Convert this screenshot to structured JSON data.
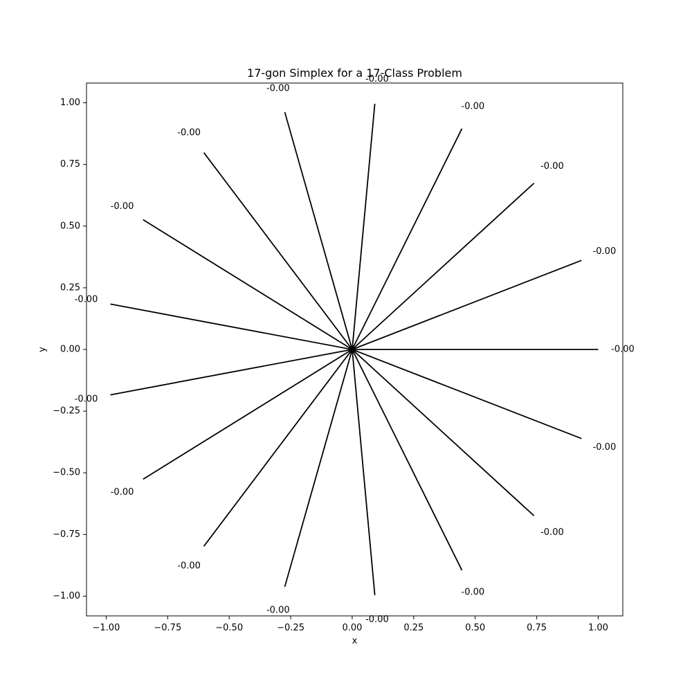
{
  "chart_data": {
    "type": "line",
    "title": "17-gon Simplex for a 17-Class Problem",
    "xlabel": "x",
    "ylabel": "y",
    "xlim": [
      -1.08,
      1.1
    ],
    "ylim": [
      -1.08,
      1.08
    ],
    "grid": false,
    "legend": "none",
    "line_color": "#000000",
    "x_ticks": [
      -1.0,
      -0.75,
      -0.5,
      -0.25,
      0.0,
      0.25,
      0.5,
      0.75,
      1.0
    ],
    "x_tick_labels": [
      "−1.00",
      "−0.75",
      "−0.50",
      "−0.25",
      "0.00",
      "0.25",
      "0.50",
      "0.75",
      "1.00"
    ],
    "y_ticks": [
      -1.0,
      -0.75,
      -0.5,
      -0.25,
      0.0,
      0.25,
      0.5,
      0.75,
      1.0
    ],
    "y_tick_labels": [
      "−1.00",
      "−0.75",
      "−0.50",
      "−0.25",
      "0.00",
      "0.25",
      "0.50",
      "0.75",
      "1.00"
    ],
    "origin": [
      0,
      0
    ],
    "rays": [
      {
        "x": 1.0,
        "y": 0.0,
        "label": "-0.00"
      },
      {
        "x": 0.932,
        "y": 0.361,
        "label": "-0.00"
      },
      {
        "x": 0.739,
        "y": 0.674,
        "label": "-0.00"
      },
      {
        "x": 0.446,
        "y": 0.895,
        "label": "-0.00"
      },
      {
        "x": 0.092,
        "y": 0.996,
        "label": "-0.00"
      },
      {
        "x": -0.274,
        "y": 0.962,
        "label": "-0.00"
      },
      {
        "x": -0.603,
        "y": 0.798,
        "label": "-0.00"
      },
      {
        "x": -0.85,
        "y": 0.526,
        "label": "-0.00"
      },
      {
        "x": -0.983,
        "y": 0.184,
        "label": "-0.00"
      },
      {
        "x": -0.983,
        "y": -0.184,
        "label": "-0.00"
      },
      {
        "x": -0.85,
        "y": -0.526,
        "label": "-0.00"
      },
      {
        "x": -0.603,
        "y": -0.798,
        "label": "-0.00"
      },
      {
        "x": -0.274,
        "y": -0.962,
        "label": "-0.00"
      },
      {
        "x": 0.092,
        "y": -0.996,
        "label": "-0.00"
      },
      {
        "x": 0.446,
        "y": -0.895,
        "label": "-0.00"
      },
      {
        "x": 0.739,
        "y": -0.674,
        "label": "-0.00"
      },
      {
        "x": 0.932,
        "y": -0.361,
        "label": "-0.00"
      }
    ]
  }
}
